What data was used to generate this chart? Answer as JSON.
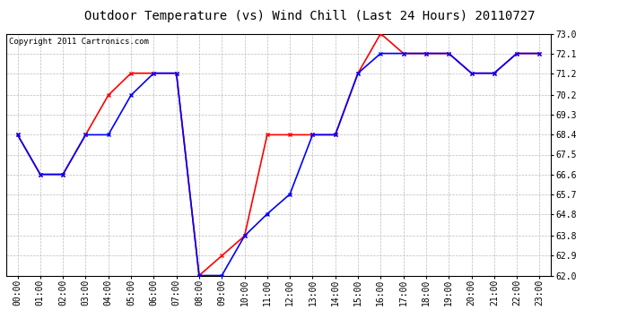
{
  "title": "Outdoor Temperature (vs) Wind Chill (Last 24 Hours) 20110727",
  "copyright": "Copyright 2011 Cartronics.com",
  "x_labels": [
    "00:00",
    "01:00",
    "02:00",
    "03:00",
    "04:00",
    "05:00",
    "06:00",
    "07:00",
    "08:00",
    "09:00",
    "10:00",
    "11:00",
    "12:00",
    "13:00",
    "14:00",
    "15:00",
    "16:00",
    "17:00",
    "18:00",
    "19:00",
    "20:00",
    "21:00",
    "22:00",
    "23:00"
  ],
  "red_data": [
    68.4,
    66.6,
    66.6,
    68.4,
    70.2,
    71.2,
    71.2,
    71.2,
    62.0,
    62.9,
    63.8,
    68.4,
    68.4,
    68.4,
    68.4,
    71.2,
    73.0,
    72.1,
    72.1,
    72.1,
    71.2,
    71.2,
    72.1,
    72.1
  ],
  "blue_data": [
    68.4,
    66.6,
    66.6,
    68.4,
    68.4,
    70.2,
    71.2,
    71.2,
    62.0,
    62.0,
    63.8,
    64.8,
    65.7,
    68.4,
    68.4,
    71.2,
    72.1,
    72.1,
    72.1,
    72.1,
    71.2,
    71.2,
    72.1,
    72.1
  ],
  "red_color": "#ff0000",
  "blue_color": "#0000ff",
  "bg_color": "#ffffff",
  "plot_bg_color": "#ffffff",
  "grid_color": "#bbbbbb",
  "ymin": 62.0,
  "ymax": 73.0,
  "yticks": [
    62.0,
    62.9,
    63.8,
    64.8,
    65.7,
    66.6,
    67.5,
    68.4,
    69.3,
    70.2,
    71.2,
    72.1,
    73.0
  ],
  "title_fontsize": 10,
  "copyright_fontsize": 6.5,
  "tick_fontsize": 7
}
